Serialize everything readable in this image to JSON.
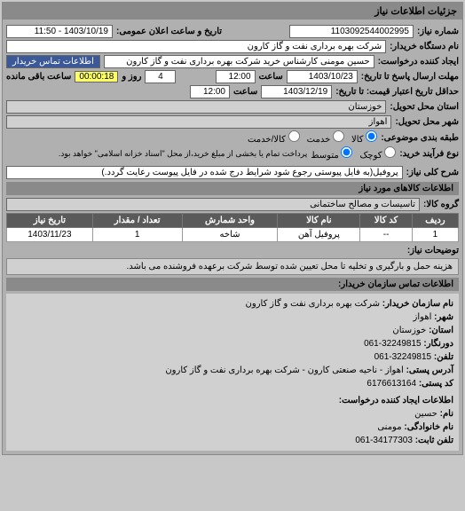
{
  "panel": {
    "title": "جزئیات اطلاعات نیاز"
  },
  "fields": {
    "need_no_label": "شماره نیاز:",
    "need_no": "1103092544002995",
    "announce_label": "تاریخ و ساعت اعلان عمومی:",
    "announce": "1403/10/19 - 11:50",
    "buyer_org_label": "نام دستگاه خریدار:",
    "buyer_org": "شرکت بهره برداری نفت و گاز کارون",
    "creator_label": "ایجاد کننده درخواست:",
    "creator": "حسین مومنی کارشناس خرید شرکت بهره برداری نفت و گاز کارون",
    "contact_btn": "اطلاعات تماس خریدار",
    "deadline_label": "مهلت ارسال پاسخ تا تاریخ:",
    "deadline_date": "1403/10/23",
    "time_lbl": "ساعت",
    "deadline_time": "12:00",
    "day_count": "4",
    "day_lbl": "روز و",
    "timer": "00:00:18",
    "timer_lbl": "ساعت باقی مانده",
    "min_credit_label": "حداقل تاریخ اعتبار قیمت: تا تاریخ:",
    "min_credit_date": "1403/12/19",
    "min_credit_time": "12:00",
    "province_label": "استان محل تحویل:",
    "province": "خوزستان",
    "city_label": "شهر محل تحویل:",
    "city": "اهواز",
    "category_label": "طبقه بندی موضوعی:",
    "cat_kala": "کالا",
    "cat_khadamat": "خدمت",
    "cat_kala_kh": "کالا/خدمت",
    "process_label": "نوع فرآیند خرید:",
    "proc_small": "کوچک",
    "proc_medium": "متوسط",
    "proc_note": "پرداخت تمام یا بخشی از مبلغ خرید،از محل \"اسناد خزانه اسلامی\" خواهد بود."
  },
  "desc": {
    "label": "شرح کلی نیاز:",
    "text": "پروفیل(به فایل پیوستی رجوع شود شرایط درج شده در فایل پیوست رعایت گردد.)"
  },
  "goods": {
    "title": "اطلاعات کالاهای مورد نیاز",
    "group_label": "گروه کالا:",
    "group": "تاسیسات و مصالح ساختمانی",
    "th_row": "ردیف",
    "th_code": "کد کالا",
    "th_name": "نام کالا",
    "th_unit": "واحد شمارش",
    "th_qty": "تعداد / مقدار",
    "th_date": "تاریخ نیاز",
    "rows": [
      {
        "row": "1",
        "code": "--",
        "name": "پروفیل آهن",
        "unit": "شاخه",
        "qty": "1",
        "date": "1403/11/23"
      }
    ]
  },
  "remarks": {
    "label": "توضیحات نیاز:",
    "text": "هزینه حمل و بارگیری و تخلیه تا محل تعیین شده توسط شرکت برعهده فروشنده می باشد."
  },
  "contact": {
    "title": "اطلاعات تماس سازمان خریدار:",
    "org_lbl": "نام سازمان خریدار:",
    "org": "شرکت بهره برداری نفت و گاز کارون",
    "city_lbl": "شهر:",
    "city": "اهواز",
    "province_lbl": "استان:",
    "province": "خوزستان",
    "fax_lbl": "دورنگار:",
    "fax": "32249815-061",
    "phone_lbl": "تلفن:",
    "phone": "32249815-061",
    "addr_lbl": "آدرس پستی:",
    "addr": "اهواز - ناحیه صنعتی کارون - شرکت بهره برداری نفت و گاز کارون",
    "post_lbl": "کد پستی:",
    "post": "6176613164",
    "req_creator_title": "اطلاعات ایجاد کننده درخواست:",
    "name_lbl": "نام:",
    "name": "حسین",
    "lname_lbl": "نام خانوادگی:",
    "lname": "مومنی",
    "phone2_lbl": "تلفن ثابت:",
    "phone2": "34177303-061"
  }
}
